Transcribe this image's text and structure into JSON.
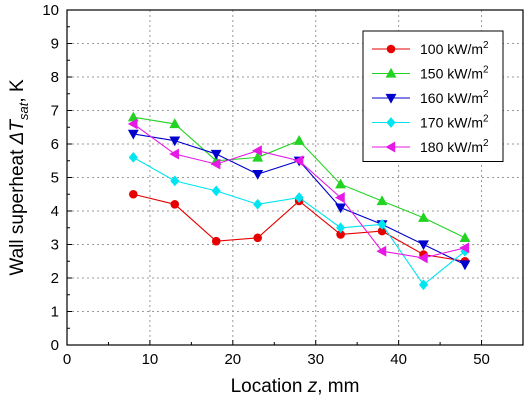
{
  "chart_data": {
    "type": "line",
    "xlabel": "Location z, mm",
    "ylabel": "Wall superheat ΔTsat, K",
    "xlim": [
      0,
      55
    ],
    "ylim": [
      0,
      10
    ],
    "xticks": [
      "0",
      "10",
      "20",
      "30",
      "40",
      "50"
    ],
    "yticks": [
      "0",
      "1",
      "2",
      "3",
      "4",
      "5",
      "6",
      "7",
      "8",
      "9",
      "10"
    ],
    "grid": true,
    "legend_position": "top-right",
    "x": [
      8,
      13,
      18,
      23,
      28,
      33,
      38,
      43,
      48
    ],
    "series": [
      {
        "name": "100 kW/m2",
        "label": "100 kW/m",
        "sup": "2",
        "color": "#e60000",
        "marker": "circle",
        "values": [
          4.5,
          4.2,
          3.1,
          3.2,
          4.3,
          3.3,
          3.4,
          2.7,
          2.5
        ]
      },
      {
        "name": "150 kW/m2",
        "label": "150 kW/m",
        "sup": "2",
        "color": "#22d322",
        "marker": "triangle-up",
        "values": [
          6.8,
          6.6,
          5.5,
          5.6,
          6.1,
          4.8,
          4.3,
          3.8,
          3.2
        ]
      },
      {
        "name": "160 kW/m2",
        "label": "160 kW/m",
        "sup": "2",
        "color": "#0000cc",
        "marker": "triangle-down",
        "values": [
          6.3,
          6.1,
          5.7,
          5.1,
          5.5,
          4.1,
          3.6,
          3.0,
          2.4
        ]
      },
      {
        "name": "170 kW/m2",
        "label": "170 kW/m",
        "sup": "2",
        "color": "#00e5f0",
        "marker": "diamond",
        "values": [
          5.6,
          4.9,
          4.6,
          4.2,
          4.4,
          3.5,
          3.6,
          1.8,
          2.8
        ]
      },
      {
        "name": "180 kW/m2",
        "label": "180 kW/m",
        "sup": "2",
        "color": "#e619e6",
        "marker": "triangle-left",
        "values": [
          6.6,
          5.7,
          5.4,
          5.8,
          5.5,
          4.4,
          2.8,
          2.6,
          2.9
        ]
      }
    ]
  }
}
